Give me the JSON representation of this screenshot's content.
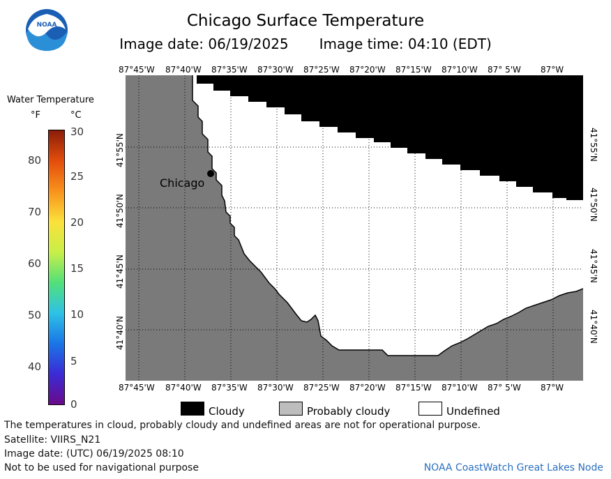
{
  "header": {
    "title": "Chicago Surface Temperature",
    "image_date": "Image date: 06/19/2025",
    "image_time": "Image time: 04:10 (EDT)"
  },
  "legend": {
    "title": "Water Temperature",
    "unit_f": "°F",
    "unit_c": "°C",
    "f_ticks": [
      "80",
      "70",
      "60",
      "50",
      "40"
    ],
    "c_ticks": [
      "30",
      "25",
      "20",
      "15",
      "10",
      "5",
      "0"
    ],
    "colors": [
      "#6a0a8a",
      "#3b2bd6",
      "#1a76e6",
      "#2ec2e6",
      "#52e07a",
      "#c8ef48",
      "#fbe13a",
      "#f8921c",
      "#e44d0c",
      "#8a1d0a"
    ]
  },
  "map": {
    "lon_labels": [
      "87°45'W",
      "87°40'W",
      "87°35'W",
      "87°30'W",
      "87°25'W",
      "87°20'W",
      "87°15'W",
      "87°10'W",
      "87° 5'W",
      "87°W"
    ],
    "lat_labels": [
      "41°55'N",
      "41°50'N",
      "41°45'N",
      "41°40'N"
    ],
    "city_label": "Chicago",
    "land_color": "#7a7a7a",
    "cloud_color": "#000000"
  },
  "key": {
    "cloudy": "Cloudy",
    "probably_cloudy": "Probably cloudy",
    "undefined": "Undefined",
    "cloudy_color": "#000000",
    "probably_cloudy_color": "#bdbdbd",
    "undefined_color": "#ffffff"
  },
  "footer": {
    "disclaimer": "The temperatures in cloud, probably cloudy and undefined areas are not for operational purpose.",
    "satellite": "Satellite: VIIRS_N21",
    "utc_date": "Image date: (UTC) 06/19/2025  08:10",
    "nav_warning": "Not to be used for navigational purpose",
    "credit": "NOAA CoastWatch Great Lakes Node"
  },
  "logo": {
    "text": "NOAA"
  }
}
